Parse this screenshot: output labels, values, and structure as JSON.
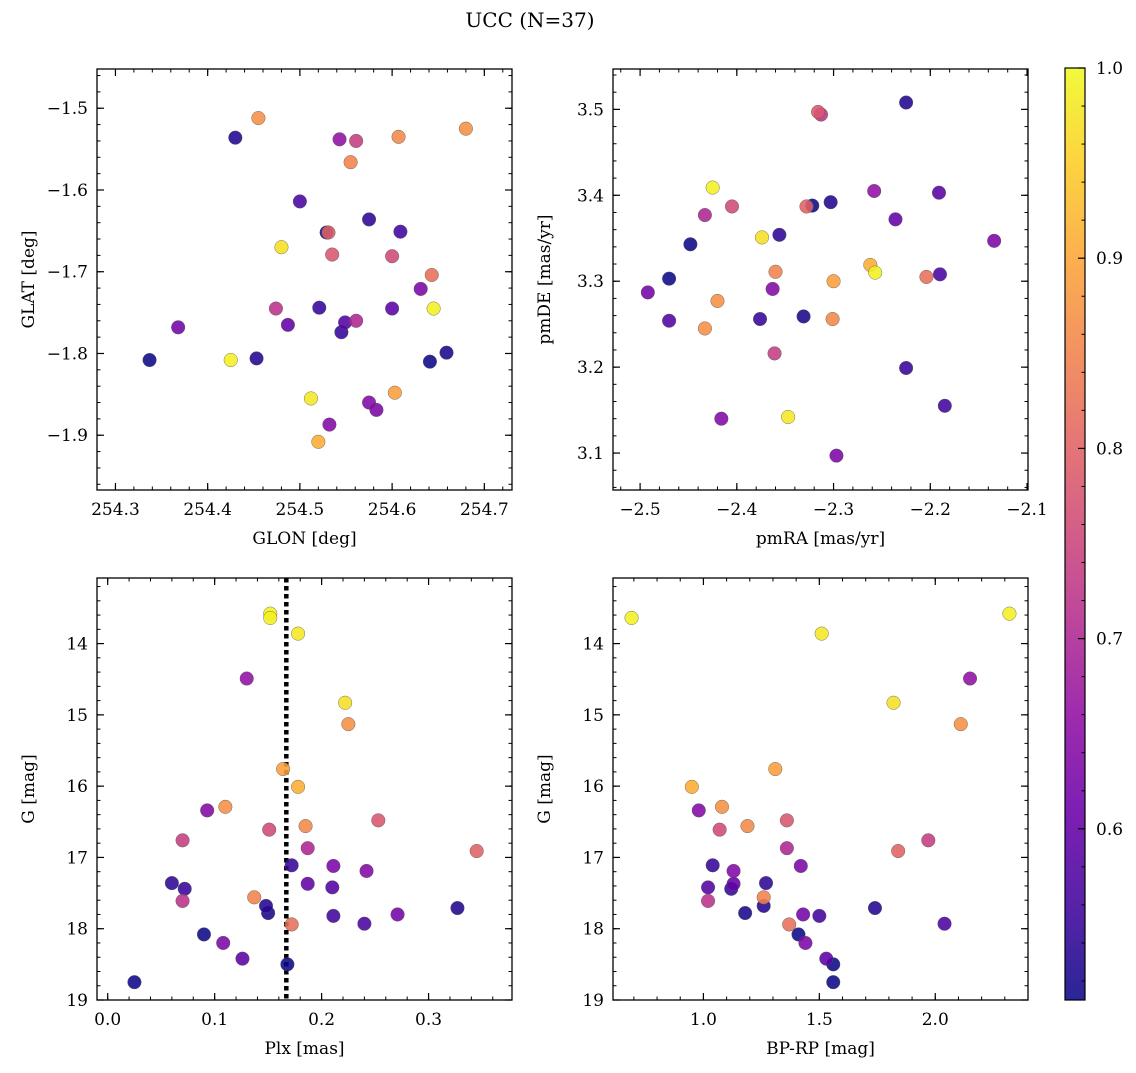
{
  "chart_data": {
    "title": "UCC (N=37)",
    "type": "scatter",
    "colorbar": {
      "colormap": "plasma",
      "range": [
        0.51,
        1.0
      ],
      "ticks": [
        0.6,
        0.7,
        0.8,
        0.9,
        1.0
      ],
      "tick_labels": [
        "0.6",
        "0.7",
        "0.8",
        "0.9",
        "1.0"
      ]
    },
    "panels": [
      {
        "id": "glon-glat",
        "xlabel": "GLON [deg]",
        "ylabel": "GLAT [deg]",
        "xlim": [
          254.28,
          254.73
        ],
        "ylim": [
          -1.967,
          -1.452
        ],
        "y_inverted": false,
        "xticks": [
          254.3,
          254.4,
          254.5,
          254.6,
          254.7
        ],
        "xtick_labels": [
          "254.3",
          "254.4",
          "254.5",
          "254.6",
          "254.7"
        ],
        "yticks": [
          -1.5,
          -1.6,
          -1.7,
          -1.8,
          -1.9
        ],
        "ytick_labels": [
          "−1.5",
          "−1.6",
          "−1.7",
          "−1.8",
          "−1.9"
        ]
      },
      {
        "id": "pm",
        "xlabel": "pmRA [mas/yr]",
        "ylabel": "pmDE [mas/yr]",
        "xlim": [
          -2.528,
          -2.099
        ],
        "ylim": [
          3.057,
          3.547
        ],
        "y_inverted": false,
        "xticks": [
          -2.5,
          -2.4,
          -2.3,
          -2.2,
          -2.1
        ],
        "xtick_labels": [
          "−2.5",
          "−2.4",
          "−2.3",
          "−2.2",
          "−2.1"
        ],
        "yticks": [
          3.1,
          3.2,
          3.3,
          3.4,
          3.5
        ],
        "ytick_labels": [
          "3.1",
          "3.2",
          "3.3",
          "3.4",
          "3.5"
        ]
      },
      {
        "id": "plx-g",
        "xlabel": "Plx [mas]",
        "ylabel": "G [mag]",
        "xlim": [
          -0.01,
          0.378
        ],
        "ylim": [
          19.0,
          13.08
        ],
        "y_inverted": true,
        "xticks": [
          0.0,
          0.1,
          0.2,
          0.3
        ],
        "xtick_labels": [
          "0.0",
          "0.1",
          "0.2",
          "0.3"
        ],
        "yticks": [
          14,
          15,
          16,
          17,
          18,
          19
        ],
        "ytick_labels": [
          "14",
          "15",
          "16",
          "17",
          "18",
          "19"
        ],
        "vline": {
          "x": 0.167,
          "style": "dotted"
        }
      },
      {
        "id": "cmd",
        "xlabel": "BP-RP [mag]",
        "ylabel": "G [mag]",
        "xlim": [
          0.61,
          2.4
        ],
        "ylim": [
          19.0,
          13.08
        ],
        "y_inverted": true,
        "xticks": [
          1.0,
          1.5,
          2.0
        ],
        "xtick_labels": [
          "1.0",
          "1.5",
          "2.0"
        ],
        "yticks": [
          14,
          15,
          16,
          17,
          18,
          19
        ],
        "ytick_labels": [
          "14",
          "15",
          "16",
          "17",
          "18",
          "19"
        ]
      }
    ],
    "stars": [
      {
        "glon": 254.425,
        "glat": -1.808,
        "pmra": -2.425,
        "pmde": 3.409,
        "plx": 0.152,
        "g": 13.58,
        "bprp": 2.32,
        "p": 0.99
      },
      {
        "glon": 254.645,
        "glat": -1.745,
        "pmra": -2.257,
        "pmde": 3.31,
        "plx": 0.152,
        "g": 13.64,
        "bprp": 0.69,
        "p": 0.99
      },
      {
        "glon": 254.512,
        "glat": -1.855,
        "pmra": -2.347,
        "pmde": 3.142,
        "plx": 0.178,
        "g": 13.86,
        "bprp": 1.51,
        "p": 0.98
      },
      {
        "glon": 254.48,
        "glat": -1.67,
        "pmra": -2.374,
        "pmde": 3.351,
        "plx": 0.222,
        "g": 14.83,
        "bprp": 1.82,
        "p": 0.97
      },
      {
        "glon": 254.52,
        "glat": -1.908,
        "pmra": -2.262,
        "pmde": 3.319,
        "plx": 0.178,
        "g": 16.01,
        "bprp": 0.95,
        "p": 0.91
      },
      {
        "glon": 254.603,
        "glat": -1.848,
        "pmra": -2.3,
        "pmde": 3.3,
        "plx": 0.164,
        "g": 15.76,
        "bprp": 1.31,
        "p": 0.89
      },
      {
        "glon": 254.455,
        "glat": -1.512,
        "pmra": -2.42,
        "pmde": 3.277,
        "plx": 0.225,
        "g": 15.13,
        "bprp": 2.11,
        "p": 0.87
      },
      {
        "glon": 254.68,
        "glat": -1.525,
        "pmra": -2.433,
        "pmde": 3.245,
        "plx": 0.11,
        "g": 16.29,
        "bprp": 1.08,
        "p": 0.87
      },
      {
        "glon": 254.607,
        "glat": -1.535,
        "pmra": -2.301,
        "pmde": 3.256,
        "plx": 0.185,
        "g": 16.56,
        "bprp": 1.19,
        "p": 0.86
      },
      {
        "glon": 254.555,
        "glat": -1.566,
        "pmra": -2.36,
        "pmde": 3.311,
        "plx": 0.137,
        "g": 17.56,
        "bprp": 1.26,
        "p": 0.85
      },
      {
        "glon": 254.643,
        "glat": -1.704,
        "pmra": -2.204,
        "pmde": 3.305,
        "plx": 0.172,
        "g": 17.94,
        "bprp": 1.37,
        "p": 0.82
      },
      {
        "glon": 254.531,
        "glat": -1.652,
        "pmra": -2.328,
        "pmde": 3.387,
        "plx": 0.345,
        "g": 16.91,
        "bprp": 1.84,
        "p": 0.8
      },
      {
        "glon": 254.535,
        "glat": -1.679,
        "pmra": -2.316,
        "pmde": 3.497,
        "plx": 0.253,
        "g": 16.48,
        "bprp": 1.36,
        "p": 0.78
      },
      {
        "glon": 254.6,
        "glat": -1.681,
        "pmra": -2.405,
        "pmde": 3.387,
        "plx": 0.151,
        "g": 16.61,
        "bprp": 1.07,
        "p": 0.76
      },
      {
        "glon": 254.561,
        "glat": -1.54,
        "pmra": -2.361,
        "pmde": 3.216,
        "plx": 0.07,
        "g": 16.76,
        "bprp": 1.97,
        "p": 0.74
      },
      {
        "glon": 254.474,
        "glat": -1.745,
        "pmra": -2.313,
        "pmde": 3.494,
        "plx": 0.07,
        "g": 17.61,
        "bprp": 1.02,
        "p": 0.72
      },
      {
        "glon": 254.561,
        "glat": -1.76,
        "pmra": -2.433,
        "pmde": 3.377,
        "plx": 0.187,
        "g": 16.87,
        "bprp": 1.36,
        "p": 0.7
      },
      {
        "glon": 254.543,
        "glat": -1.538,
        "pmra": -2.258,
        "pmde": 3.405,
        "plx": 0.13,
        "g": 14.49,
        "bprp": 2.15,
        "p": 0.66
      },
      {
        "glon": 254.532,
        "glat": -1.887,
        "pmra": -2.363,
        "pmde": 3.291,
        "plx": 0.093,
        "g": 16.34,
        "bprp": 0.98,
        "p": 0.64
      },
      {
        "glon": 254.575,
        "glat": -1.86,
        "pmra": -2.416,
        "pmde": 3.14,
        "plx": 0.242,
        "g": 17.19,
        "bprp": 1.13,
        "p": 0.64
      },
      {
        "glon": 254.631,
        "glat": -1.721,
        "pmra": -2.134,
        "pmde": 3.347,
        "plx": 0.108,
        "g": 18.2,
        "bprp": 1.44,
        "p": 0.63
      },
      {
        "glon": 254.583,
        "glat": -1.869,
        "pmra": -2.297,
        "pmde": 3.097,
        "plx": 0.211,
        "g": 17.12,
        "bprp": 1.42,
        "p": 0.63
      },
      {
        "glon": 254.368,
        "glat": -1.768,
        "pmra": -2.492,
        "pmde": 3.287,
        "plx": 0.271,
        "g": 17.8,
        "bprp": 1.43,
        "p": 0.62
      },
      {
        "glon": 254.487,
        "glat": -1.765,
        "pmra": -2.236,
        "pmde": 3.372,
        "plx": 0.187,
        "g": 17.37,
        "bprp": 1.13,
        "p": 0.6
      },
      {
        "glon": 254.6,
        "glat": -1.745,
        "pmra": -2.191,
        "pmde": 3.403,
        "plx": 0.126,
        "g": 18.42,
        "bprp": 1.53,
        "p": 0.59
      },
      {
        "glon": 254.549,
        "glat": -1.762,
        "pmra": -2.47,
        "pmde": 3.254,
        "plx": 0.21,
        "g": 17.42,
        "bprp": 1.02,
        "p": 0.58
      },
      {
        "glon": 254.5,
        "glat": -1.614,
        "pmra": -2.19,
        "pmde": 3.308,
        "plx": 0.24,
        "g": 17.93,
        "bprp": 2.04,
        "p": 0.57
      },
      {
        "glon": 254.609,
        "glat": -1.651,
        "pmra": -2.185,
        "pmde": 3.155,
        "plx": 0.211,
        "g": 17.82,
        "bprp": 1.5,
        "p": 0.56
      },
      {
        "glon": 254.521,
        "glat": -1.744,
        "pmra": -2.225,
        "pmde": 3.199,
        "plx": 0.172,
        "g": 17.11,
        "bprp": 1.04,
        "p": 0.55
      },
      {
        "glon": 254.545,
        "glat": -1.774,
        "pmra": -2.376,
        "pmde": 3.256,
        "plx": 0.072,
        "g": 17.44,
        "bprp": 1.12,
        "p": 0.55
      },
      {
        "glon": 254.575,
        "glat": -1.636,
        "pmra": -2.356,
        "pmde": 3.354,
        "plx": 0.06,
        "g": 17.36,
        "bprp": 1.27,
        "p": 0.54
      },
      {
        "glon": 254.453,
        "glat": -1.806,
        "pmra": -2.225,
        "pmde": 3.508,
        "plx": 0.148,
        "g": 17.68,
        "bprp": 1.26,
        "p": 0.53
      },
      {
        "glon": 254.43,
        "glat": -1.536,
        "pmra": -2.303,
        "pmde": 3.392,
        "plx": 0.327,
        "g": 17.71,
        "bprp": 1.74,
        "p": 0.53
      },
      {
        "glon": 254.659,
        "glat": -1.799,
        "pmra": -2.331,
        "pmde": 3.259,
        "plx": 0.15,
        "g": 17.78,
        "bprp": 1.18,
        "p": 0.52
      },
      {
        "glon": 254.641,
        "glat": -1.81,
        "pmra": -2.47,
        "pmde": 3.303,
        "plx": 0.09,
        "g": 18.08,
        "bprp": 1.41,
        "p": 0.51
      },
      {
        "glon": 254.529,
        "glat": -1.652,
        "pmra": -2.322,
        "pmde": 3.388,
        "plx": 0.168,
        "g": 18.5,
        "bprp": 1.56,
        "p": 0.51
      },
      {
        "glon": 254.337,
        "glat": -1.808,
        "pmra": -2.448,
        "pmde": 3.343,
        "plx": 0.025,
        "g": 18.75,
        "bprp": 1.56,
        "p": 0.51
      }
    ]
  }
}
